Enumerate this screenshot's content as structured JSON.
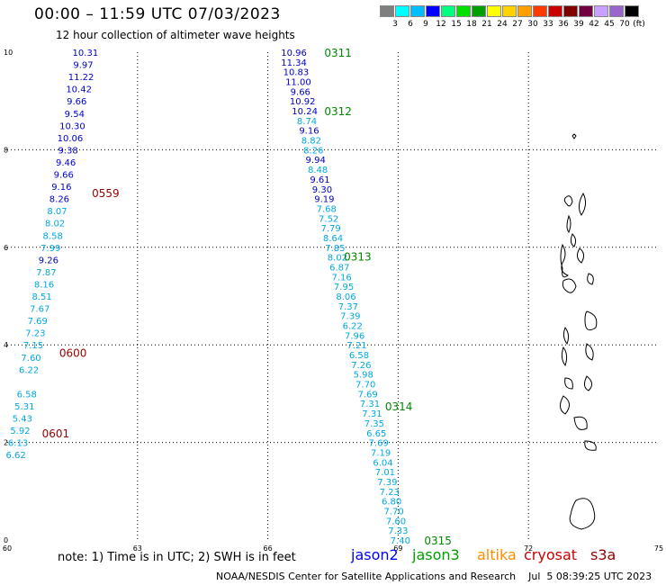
{
  "header": {
    "title": "00:00 – 11:59 UTC 07/03/2023",
    "subtitle": "12 hour collection of altimeter wave heights"
  },
  "legend": {
    "unit": "(ft)",
    "colors": [
      "#7f7f7f",
      "#00ffff",
      "#00bfff",
      "#0000ff",
      "#00ff7f",
      "#00df00",
      "#00a000",
      "#ffff00",
      "#ffd200",
      "#ff9f00",
      "#ff3a00",
      "#c80000",
      "#800000",
      "#700040",
      "#c8a0ff",
      "#9966cc",
      "#000000"
    ],
    "labels": [
      "3",
      "6",
      "9",
      "12",
      "15",
      "18",
      "21",
      "24",
      "27",
      "30",
      "33",
      "36",
      "39",
      "42",
      "45",
      "70"
    ]
  },
  "axes": {
    "x_ticks": [
      "60",
      "63",
      "66",
      "69",
      "72",
      "75"
    ],
    "y_ticks": [
      "0",
      "2",
      "4",
      "6",
      "8",
      "10"
    ]
  },
  "chart_data": {
    "type": "scatter",
    "x_range": [
      60,
      75
    ],
    "y_range": [
      0,
      10
    ],
    "grid": "dotted",
    "track_labels": [
      {
        "text": "0311",
        "satellite": "jason3",
        "x": 67.3,
        "y": 10.0
      },
      {
        "text": "0312",
        "satellite": "jason3",
        "x": 67.3,
        "y": 8.8
      },
      {
        "text": "0313",
        "satellite": "jason3",
        "x": 67.75,
        "y": 5.82
      },
      {
        "text": "0314",
        "satellite": "jason3",
        "x": 68.7,
        "y": 2.75
      },
      {
        "text": "0315",
        "satellite": "jason3",
        "x": 69.6,
        "y": 0.0
      },
      {
        "text": "0559",
        "satellite": "cryosat",
        "x": 61.95,
        "y": 7.12
      },
      {
        "text": "0600",
        "satellite": "cryosat",
        "x": 61.2,
        "y": 3.85
      },
      {
        "text": "0601",
        "satellite": "cryosat",
        "x": 60.8,
        "y": 2.2
      }
    ],
    "tracks": [
      {
        "name": "jason3",
        "points": [
          {
            "x": 66.6,
            "y": 10.0,
            "v": "10.96",
            "c": "#0000cc"
          },
          {
            "x": 66.6,
            "y": 9.8,
            "v": "11.34",
            "c": "#0000cc"
          },
          {
            "x": 66.65,
            "y": 9.6,
            "v": "10.83",
            "c": "#0000cc"
          },
          {
            "x": 66.7,
            "y": 9.4,
            "v": "11.00",
            "c": "#0000cc"
          },
          {
            "x": 66.75,
            "y": 9.2,
            "v": "9.66",
            "c": "#0000cc"
          },
          {
            "x": 66.8,
            "y": 9.0,
            "v": "10.92",
            "c": "#0000cc"
          },
          {
            "x": 66.85,
            "y": 8.8,
            "v": "10.24",
            "c": "#0000cc"
          },
          {
            "x": 66.9,
            "y": 8.6,
            "v": "8.74",
            "c": "#00a8e0"
          },
          {
            "x": 66.95,
            "y": 8.4,
            "v": "9.16",
            "c": "#0000cc"
          },
          {
            "x": 67.0,
            "y": 8.2,
            "v": "8.82",
            "c": "#00a8e0"
          },
          {
            "x": 67.05,
            "y": 8.0,
            "v": "8.26",
            "c": "#00a8e0"
          },
          {
            "x": 67.1,
            "y": 7.8,
            "v": "9.94",
            "c": "#0000cc"
          },
          {
            "x": 67.15,
            "y": 7.6,
            "v": "8.48",
            "c": "#00a8e0"
          },
          {
            "x": 67.2,
            "y": 7.4,
            "v": "9.61",
            "c": "#0000cc"
          },
          {
            "x": 67.25,
            "y": 7.2,
            "v": "9.30",
            "c": "#0000cc"
          },
          {
            "x": 67.3,
            "y": 7.0,
            "v": "9.19",
            "c": "#0000cc"
          },
          {
            "x": 67.35,
            "y": 6.8,
            "v": "7.68",
            "c": "#00a8e0"
          },
          {
            "x": 67.4,
            "y": 6.6,
            "v": "7.52",
            "c": "#00a8e0"
          },
          {
            "x": 67.45,
            "y": 6.4,
            "v": "7.79",
            "c": "#00a8e0"
          },
          {
            "x": 67.5,
            "y": 6.2,
            "v": "8.64",
            "c": "#00a8e0"
          },
          {
            "x": 67.55,
            "y": 6.0,
            "v": "7.85",
            "c": "#00a8e0"
          },
          {
            "x": 67.6,
            "y": 5.8,
            "v": "8.02",
            "c": "#00a8e0"
          },
          {
            "x": 67.65,
            "y": 5.6,
            "v": "6.87",
            "c": "#00a8e0"
          },
          {
            "x": 67.7,
            "y": 5.4,
            "v": "7.16",
            "c": "#00a8e0"
          },
          {
            "x": 67.75,
            "y": 5.2,
            "v": "7.95",
            "c": "#00a8e0"
          },
          {
            "x": 67.8,
            "y": 5.0,
            "v": "8.06",
            "c": "#00a8e0"
          },
          {
            "x": 67.85,
            "y": 4.8,
            "v": "7.37",
            "c": "#00a8e0"
          },
          {
            "x": 67.9,
            "y": 4.6,
            "v": "7.39",
            "c": "#00a8e0"
          },
          {
            "x": 67.95,
            "y": 4.4,
            "v": "6.22",
            "c": "#00a8e0"
          },
          {
            "x": 68.0,
            "y": 4.2,
            "v": "7.96",
            "c": "#00a8e0"
          },
          {
            "x": 68.05,
            "y": 4.0,
            "v": "7.21",
            "c": "#00a8e0"
          },
          {
            "x": 68.1,
            "y": 3.8,
            "v": "6.58",
            "c": "#00a8e0"
          },
          {
            "x": 68.15,
            "y": 3.6,
            "v": "7.26",
            "c": "#00a8e0"
          },
          {
            "x": 68.2,
            "y": 3.4,
            "v": "5.98",
            "c": "#00a8e0"
          },
          {
            "x": 68.25,
            "y": 3.2,
            "v": "7.70",
            "c": "#00a8e0"
          },
          {
            "x": 68.3,
            "y": 3.0,
            "v": "7.69",
            "c": "#00a8e0"
          },
          {
            "x": 68.35,
            "y": 2.8,
            "v": "7.31",
            "c": "#00a8e0"
          },
          {
            "x": 68.4,
            "y": 2.6,
            "v": "7.31",
            "c": "#00a8e0"
          },
          {
            "x": 68.45,
            "y": 2.4,
            "v": "7.35",
            "c": "#00a8e0"
          },
          {
            "x": 68.5,
            "y": 2.2,
            "v": "6.65",
            "c": "#00a8e0"
          },
          {
            "x": 68.55,
            "y": 2.0,
            "v": "7.69",
            "c": "#00a8e0"
          },
          {
            "x": 68.6,
            "y": 1.8,
            "v": "7.19",
            "c": "#00a8e0"
          },
          {
            "x": 68.65,
            "y": 1.6,
            "v": "6.04",
            "c": "#00a8e0"
          },
          {
            "x": 68.7,
            "y": 1.4,
            "v": "7.01",
            "c": "#00a8e0"
          },
          {
            "x": 68.75,
            "y": 1.2,
            "v": "7.39",
            "c": "#00a8e0"
          },
          {
            "x": 68.8,
            "y": 1.0,
            "v": "7.23",
            "c": "#00a8e0"
          },
          {
            "x": 68.85,
            "y": 0.8,
            "v": "6.80",
            "c": "#00a8e0"
          },
          {
            "x": 68.9,
            "y": 0.6,
            "v": "7.70",
            "c": "#00a8e0"
          },
          {
            "x": 68.95,
            "y": 0.4,
            "v": "7.60",
            "c": "#00a8e0"
          },
          {
            "x": 69.0,
            "y": 0.2,
            "v": "7.33",
            "c": "#00a8e0"
          },
          {
            "x": 69.05,
            "y": 0.0,
            "v": "7.40",
            "c": "#00a8e0"
          }
        ]
      },
      {
        "name": "cryosat",
        "points": [
          {
            "x": 61.8,
            "y": 10.0,
            "v": "10.31",
            "c": "#0000cc"
          },
          {
            "x": 61.75,
            "y": 9.75,
            "v": "9.97",
            "c": "#0000cc"
          },
          {
            "x": 61.7,
            "y": 9.5,
            "v": "11.22",
            "c": "#0000cc"
          },
          {
            "x": 61.65,
            "y": 9.25,
            "v": "10.42",
            "c": "#0000cc"
          },
          {
            "x": 61.6,
            "y": 9.0,
            "v": "9.66",
            "c": "#0000cc"
          },
          {
            "x": 61.55,
            "y": 8.75,
            "v": "9.54",
            "c": "#0000cc"
          },
          {
            "x": 61.5,
            "y": 8.5,
            "v": "10.30",
            "c": "#0000cc"
          },
          {
            "x": 61.45,
            "y": 8.25,
            "v": "10.06",
            "c": "#0000cc"
          },
          {
            "x": 61.4,
            "y": 8.0,
            "v": "9.38",
            "c": "#0000cc"
          },
          {
            "x": 61.35,
            "y": 7.75,
            "v": "9.46",
            "c": "#0000cc"
          },
          {
            "x": 61.3,
            "y": 7.5,
            "v": "9.66",
            "c": "#0000cc"
          },
          {
            "x": 61.25,
            "y": 7.25,
            "v": "9.16",
            "c": "#0000cc"
          },
          {
            "x": 61.2,
            "y": 7.0,
            "v": "8.26",
            "c": "#0000cc"
          },
          {
            "x": 61.15,
            "y": 6.75,
            "v": "8.07",
            "c": "#00a8e0"
          },
          {
            "x": 61.1,
            "y": 6.5,
            "v": "8.02",
            "c": "#00a8e0"
          },
          {
            "x": 61.05,
            "y": 6.25,
            "v": "8.58",
            "c": "#00a8e0"
          },
          {
            "x": 61.0,
            "y": 6.0,
            "v": "7.99",
            "c": "#00a8e0"
          },
          {
            "x": 60.95,
            "y": 5.75,
            "v": "9.26",
            "c": "#0000cc"
          },
          {
            "x": 60.9,
            "y": 5.5,
            "v": "7.87",
            "c": "#00a8e0"
          },
          {
            "x": 60.85,
            "y": 5.25,
            "v": "8.16",
            "c": "#00a8e0"
          },
          {
            "x": 60.8,
            "y": 5.0,
            "v": "8.51",
            "c": "#00a8e0"
          },
          {
            "x": 60.75,
            "y": 4.75,
            "v": "7.67",
            "c": "#00a8e0"
          },
          {
            "x": 60.7,
            "y": 4.5,
            "v": "7.69",
            "c": "#00a8e0"
          },
          {
            "x": 60.65,
            "y": 4.25,
            "v": "7.23",
            "c": "#00a8e0"
          },
          {
            "x": 60.6,
            "y": 4.0,
            "v": "7.15",
            "c": "#00a8e0"
          },
          {
            "x": 60.55,
            "y": 3.75,
            "v": "7.60",
            "c": "#00a8e0"
          },
          {
            "x": 60.5,
            "y": 3.5,
            "v": "6.22",
            "c": "#00a8e0"
          },
          {
            "x": 60.45,
            "y": 3.0,
            "v": "6.58",
            "c": "#00a8e0"
          },
          {
            "x": 60.4,
            "y": 2.75,
            "v": "5.31",
            "c": "#00a8e0"
          },
          {
            "x": 60.35,
            "y": 2.5,
            "v": "5.43",
            "c": "#00a8e0"
          },
          {
            "x": 60.3,
            "y": 2.25,
            "v": "5.92",
            "c": "#00a8e0"
          },
          {
            "x": 60.25,
            "y": 2.0,
            "v": "6.13",
            "c": "#00a8e0"
          },
          {
            "x": 60.2,
            "y": 1.75,
            "v": "6.62",
            "c": "#00a8e0"
          }
        ]
      }
    ]
  },
  "notes": {
    "text": "note:  1) Time is in UTC;  2) SWH is in feet"
  },
  "satellites": [
    {
      "name": "jason2",
      "color": "#0000ff"
    },
    {
      "name": "jason3",
      "color": "#00a000"
    },
    {
      "name": "altika",
      "color": "#ff8c00"
    },
    {
      "name": "cryosat",
      "color": "#cc0000"
    },
    {
      "name": "s3a",
      "color": "#990000"
    }
  ],
  "footer": {
    "text": "NOAA/NESDIS Center for Satellite Applications and Research    Jul  5 08:39:25 UTC 2023"
  }
}
